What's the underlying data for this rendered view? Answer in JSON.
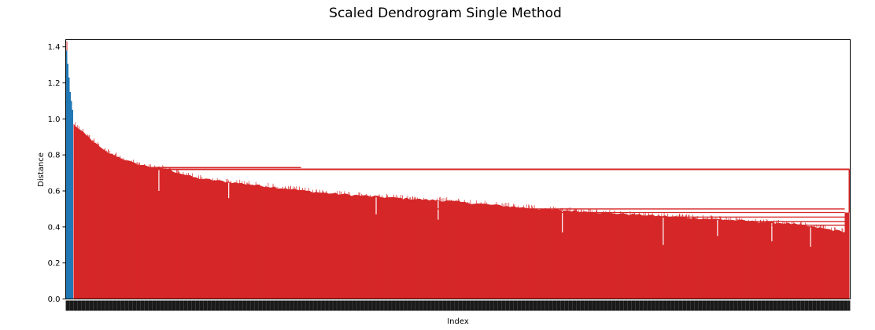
{
  "chart_data": {
    "type": "dendrogram",
    "title": "Scaled Dendrogram Single Method",
    "xlabel": "Index",
    "ylabel": "Distance",
    "ylim": [
      0,
      1.44
    ],
    "yticks": [
      0.0,
      0.2,
      0.4,
      0.6,
      0.8,
      1.0,
      1.2,
      1.4
    ],
    "ytick_labels": [
      "0.0",
      "0.2",
      "0.4",
      "0.6",
      "0.8",
      "1.0",
      "1.2",
      "1.4"
    ],
    "n_leaves": 600,
    "grid": false,
    "legend": "none",
    "series": [
      {
        "color": "#1f77b4",
        "leaf_range": [
          0,
          0.008
        ],
        "top_height": 1.38,
        "heights_profile": [
          [
            0.0,
            1.38
          ],
          [
            0.3,
            1.27
          ],
          [
            0.6,
            1.15
          ],
          [
            1.0,
            1.05
          ]
        ]
      },
      {
        "color": "#d62728",
        "leaf_range": [
          0.008,
          1.0
        ],
        "merge_height": 0.72,
        "envelope_left": [
          [
            0.0,
            0.97
          ],
          [
            0.05,
            0.82
          ],
          [
            0.1,
            0.75
          ],
          [
            0.15,
            0.72
          ],
          [
            0.2,
            0.67
          ],
          [
            0.3,
            0.63
          ],
          [
            0.4,
            0.59
          ],
          [
            0.5,
            0.565
          ],
          [
            0.6,
            0.545
          ],
          [
            0.7,
            0.515
          ],
          [
            0.75,
            0.5
          ]
        ],
        "envelope_right": [
          [
            0.0,
            0.5
          ],
          [
            0.2,
            0.48
          ],
          [
            0.4,
            0.46
          ],
          [
            0.6,
            0.44
          ],
          [
            0.8,
            0.42
          ],
          [
            1.0,
            0.37
          ]
        ],
        "left_split": 0.6,
        "right_tail_height": 0.48,
        "horizontal_links": [
          0.72,
          0.73,
          0.5,
          0.48,
          0.455,
          0.43,
          0.41
        ],
        "dips": [
          [
            0.11,
            0.6
          ],
          [
            0.2,
            0.56
          ],
          [
            0.39,
            0.47
          ],
          [
            0.47,
            0.44
          ],
          [
            0.63,
            0.37
          ],
          [
            0.76,
            0.3
          ],
          [
            0.83,
            0.35
          ],
          [
            0.9,
            0.32
          ],
          [
            0.95,
            0.29
          ]
        ]
      }
    ],
    "root_link_color": "#d62728"
  }
}
